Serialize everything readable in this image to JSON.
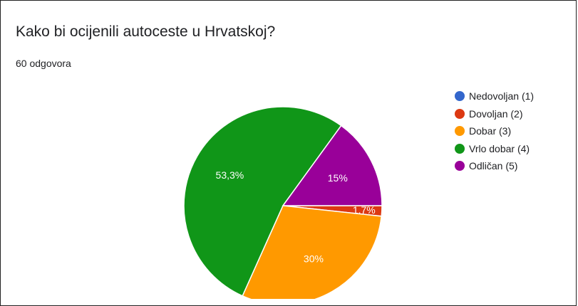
{
  "chart_data": {
    "type": "pie",
    "title": "Kako bi ocijenili autoceste u Hrvatskoj?",
    "subtitle": "60 odgovora",
    "legend_position": "right",
    "slices": [
      {
        "label": "Nedovoljan (1)",
        "value": 0,
        "percent_label": "",
        "color": "#3366cc"
      },
      {
        "label": "Dovoljan (2)",
        "value": 1.7,
        "percent_label": "1,7%",
        "color": "#dc3912"
      },
      {
        "label": "Dobar (3)",
        "value": 30,
        "percent_label": "30%",
        "color": "#ff9900"
      },
      {
        "label": "Vrlo dobar (4)",
        "value": 53.3,
        "percent_label": "53,3%",
        "color": "#109618"
      },
      {
        "label": "Odličan (5)",
        "value": 15,
        "percent_label": "15%",
        "color": "#990099"
      }
    ]
  }
}
